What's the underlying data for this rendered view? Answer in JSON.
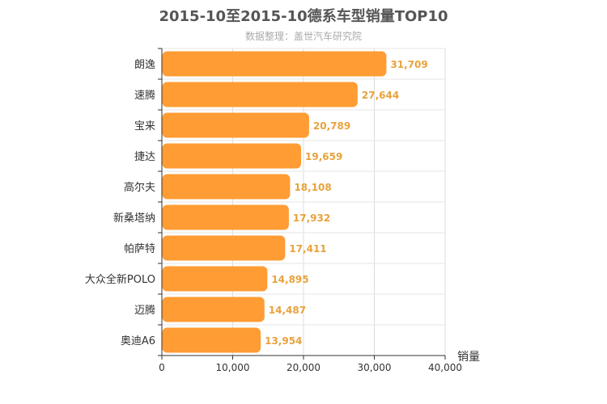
{
  "chart_data": {
    "type": "bar",
    "orientation": "horizontal",
    "title": "2015-10至2015-10德系车型销量TOP10",
    "subtitle": "数据整理：盖世汽车研究院",
    "xlabel": "销量",
    "ylabel": "",
    "categories": [
      "朗逸",
      "速腾",
      "宝来",
      "捷达",
      "高尔夫",
      "新桑塔纳",
      "帕萨特",
      "大众全新POLO",
      "迈腾",
      "奥迪A6"
    ],
    "values": [
      31709,
      27644,
      20789,
      19659,
      18108,
      17932,
      17411,
      14895,
      14487,
      13954
    ],
    "value_labels": [
      "31,709",
      "27,644",
      "20,789",
      "19,659",
      "18,108",
      "17,932",
      "17,411",
      "14,895",
      "14,487",
      "13,954"
    ],
    "xlim": [
      0,
      40000
    ],
    "xticks": [
      0,
      10000,
      20000,
      30000,
      40000
    ],
    "xtick_labels": [
      "0",
      "10,000",
      "20,000",
      "30,000",
      "40,000"
    ],
    "grid": true,
    "bar_color": "#ff9c34",
    "value_label_color": "#e8a23c"
  }
}
